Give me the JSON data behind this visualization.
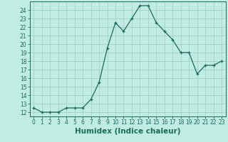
{
  "x": [
    0,
    1,
    2,
    3,
    4,
    5,
    6,
    7,
    8,
    9,
    10,
    11,
    12,
    13,
    14,
    15,
    16,
    17,
    18,
    19,
    20,
    21,
    22,
    23
  ],
  "y": [
    12.5,
    12.0,
    12.0,
    12.0,
    12.5,
    12.5,
    12.5,
    13.5,
    15.5,
    19.5,
    22.5,
    21.5,
    23.0,
    24.5,
    24.5,
    22.5,
    21.5,
    20.5,
    19.0,
    19.0,
    16.5,
    17.5,
    17.5,
    18.0
  ],
  "line_color": "#1a6b5a",
  "marker": "+",
  "bg_color": "#c0ece4",
  "grid_color": "#a0ccc4",
  "xlabel": "Humidex (Indice chaleur)",
  "ylim": [
    11.5,
    25.0
  ],
  "xlim": [
    -0.5,
    23.5
  ],
  "yticks": [
    12,
    13,
    14,
    15,
    16,
    17,
    18,
    19,
    20,
    21,
    22,
    23,
    24
  ],
  "xticks": [
    0,
    1,
    2,
    3,
    4,
    5,
    6,
    7,
    8,
    9,
    10,
    11,
    12,
    13,
    14,
    15,
    16,
    17,
    18,
    19,
    20,
    21,
    22,
    23
  ],
  "tick_fontsize": 5.5,
  "label_fontsize": 7.5
}
